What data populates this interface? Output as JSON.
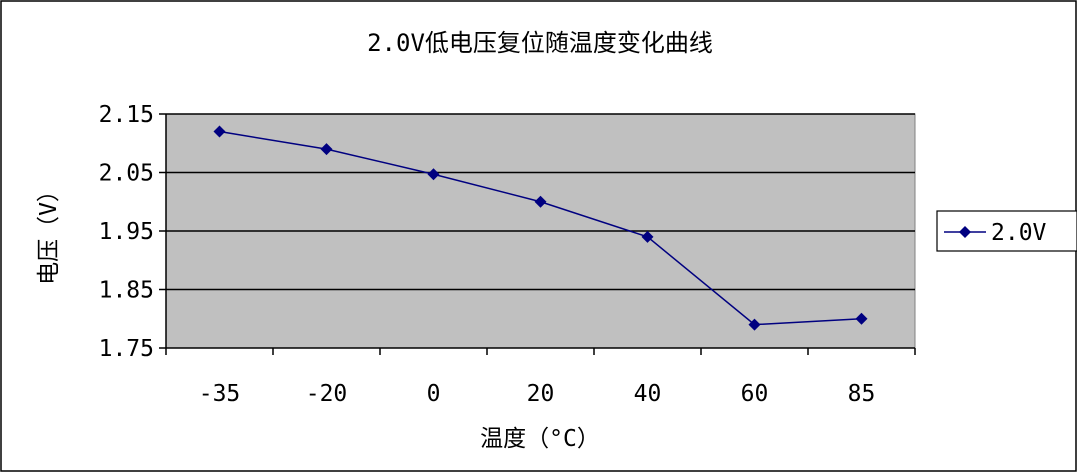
{
  "chart_data": {
    "type": "line",
    "title": "2.0V低电压复位随温度变化曲线",
    "xlabel": "温度（°C）",
    "ylabel": "电压（V）",
    "categories": [
      "-35",
      "-20",
      "0",
      "20",
      "40",
      "60",
      "85"
    ],
    "series": [
      {
        "name": "2.0V",
        "values": [
          2.12,
          2.09,
          2.047,
          2.0,
          1.94,
          1.79,
          1.8
        ]
      }
    ],
    "ylim": [
      1.75,
      2.15
    ],
    "yticks": [
      "1.75",
      "1.85",
      "1.95",
      "2.05",
      "2.15"
    ],
    "ytick_values": [
      1.75,
      1.85,
      1.95,
      2.05,
      2.15
    ],
    "grid": true,
    "legend": "right",
    "colors": {
      "series": "#000080",
      "plot_background": "#c0c0c0",
      "gridline": "#000000"
    }
  }
}
